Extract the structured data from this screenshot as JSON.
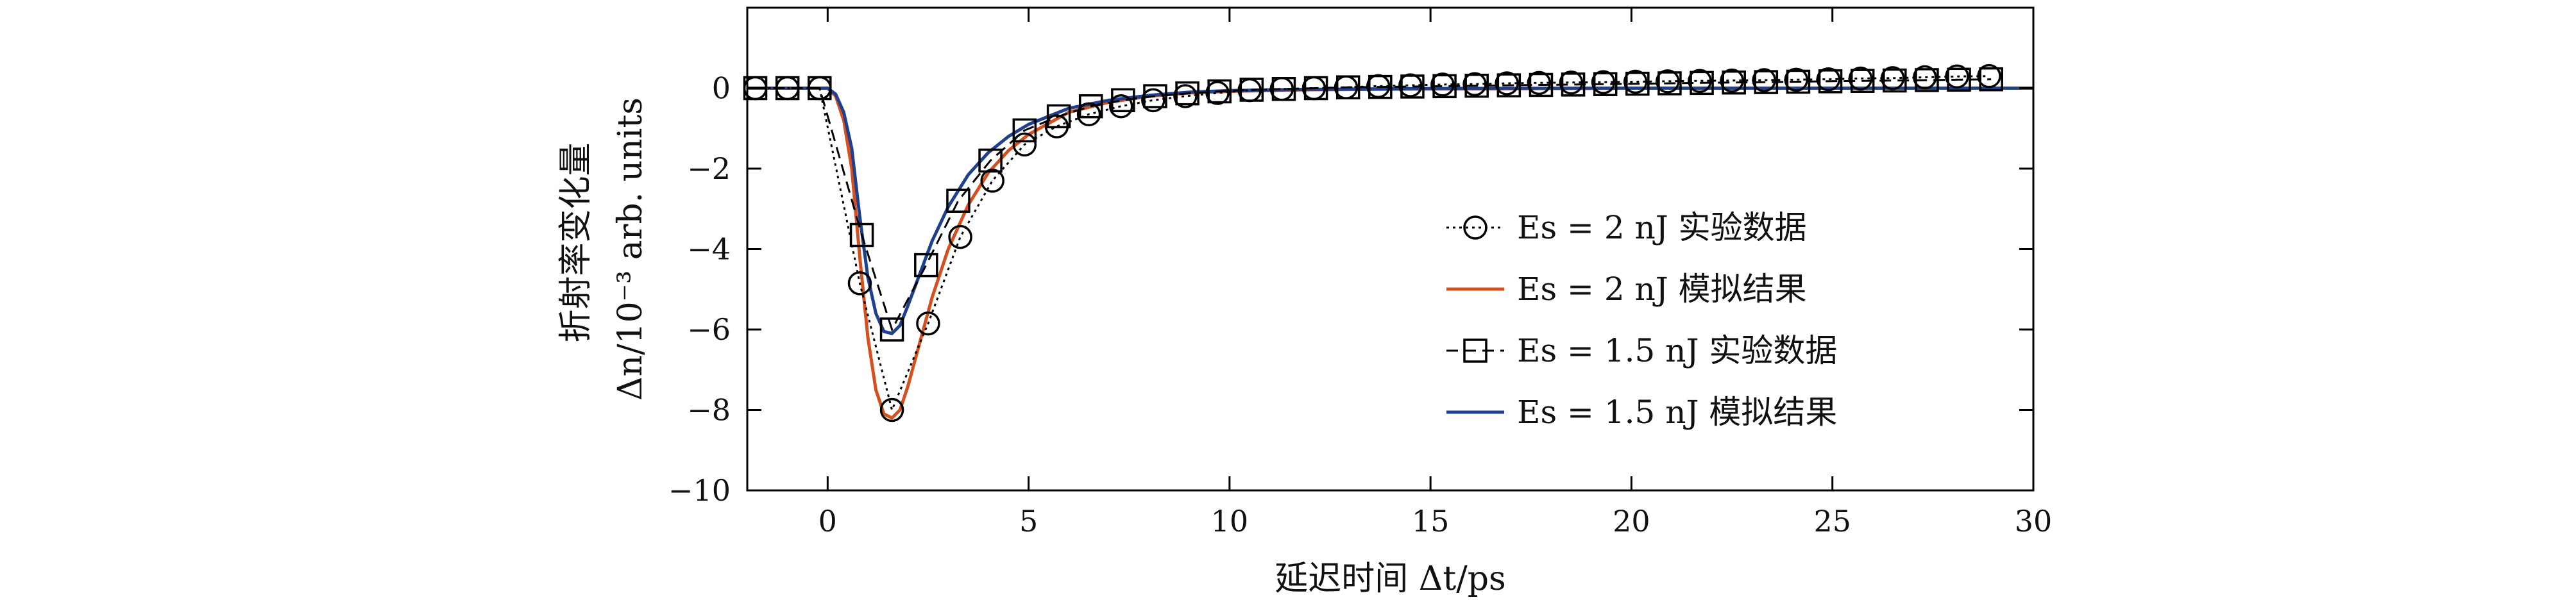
{
  "chart_data": {
    "type": "line",
    "title": "",
    "xlabel": "延迟时间 Δt/ps",
    "ylabel_line1": "折射率变化量",
    "ylabel_line2": "Δn/10⁻³ arb. units",
    "xlim": [
      -2,
      30
    ],
    "ylim": [
      -10,
      2
    ],
    "xticks": [
      0,
      5,
      10,
      15,
      20,
      25,
      30
    ],
    "yticks": [
      0,
      -2,
      -4,
      -6,
      -8,
      -10
    ],
    "xtick_labels": [
      "0",
      "5",
      "10",
      "15",
      "20",
      "25",
      "30"
    ],
    "ytick_labels": [
      "0",
      "−2",
      "−4",
      "−6",
      "−8",
      "−10"
    ],
    "grid": false,
    "legend_position": "right",
    "series": [
      {
        "name": "Es = 2 nJ 实验数据",
        "kind": "markers-dotted",
        "marker": "circle",
        "color": "#000000",
        "x": [
          -1.8,
          -1,
          -0.2,
          0.8,
          1.6,
          2.5,
          3.3,
          4.1,
          4.9,
          5.7,
          6.5,
          7.3,
          8.1,
          8.9,
          9.7,
          10.5,
          11.3,
          12.1,
          12.9,
          13.7,
          14.5,
          15.3,
          16.1,
          16.9,
          17.7,
          18.5,
          19.3,
          20.1,
          20.9,
          21.7,
          22.5,
          23.3,
          24.1,
          24.9,
          25.7,
          26.5,
          27.3,
          28.1,
          28.9
        ],
        "y": [
          0,
          0,
          0,
          -4.85,
          -8.0,
          -5.85,
          -3.7,
          -2.3,
          -1.4,
          -0.95,
          -0.65,
          -0.45,
          -0.3,
          -0.2,
          -0.12,
          -0.05,
          -0.02,
          0.0,
          0.02,
          0.05,
          0.07,
          0.09,
          0.1,
          0.12,
          0.13,
          0.14,
          0.15,
          0.16,
          0.17,
          0.18,
          0.19,
          0.2,
          0.21,
          0.22,
          0.24,
          0.25,
          0.27,
          0.29,
          0.3
        ]
      },
      {
        "name": "Es = 2 nJ 模拟结果",
        "kind": "line",
        "color": "#d4501f",
        "x": [
          -2,
          0,
          0.2,
          0.4,
          0.6,
          0.8,
          1.0,
          1.2,
          1.4,
          1.6,
          1.8,
          2.0,
          2.3,
          2.6,
          3.0,
          3.5,
          4.0,
          4.5,
          5.0,
          6.0,
          7.0,
          8.0,
          9.0,
          10.0,
          12.0,
          15.0,
          20.0,
          25.0,
          30.0
        ],
        "y": [
          0,
          0,
          -0.2,
          -0.8,
          -2.0,
          -4.2,
          -6.2,
          -7.5,
          -8.1,
          -8.2,
          -8.0,
          -7.4,
          -6.3,
          -5.2,
          -4.0,
          -2.9,
          -2.1,
          -1.55,
          -1.15,
          -0.6,
          -0.35,
          -0.2,
          -0.12,
          -0.08,
          -0.04,
          -0.02,
          0,
          0,
          0
        ]
      },
      {
        "name": "Es = 1.5 nJ 实验数据",
        "kind": "markers-dashed",
        "marker": "square",
        "color": "#000000",
        "x": [
          -1.8,
          -1,
          -0.2,
          0.85,
          1.6,
          2.45,
          3.25,
          4.05,
          4.9,
          5.75,
          6.55,
          7.35,
          8.15,
          8.95,
          9.75,
          10.55,
          11.35,
          12.15,
          12.95,
          13.75,
          14.55,
          15.35,
          16.15,
          16.95,
          17.75,
          18.55,
          19.35,
          20.15,
          20.95,
          21.75,
          22.55,
          23.35,
          24.15,
          24.95,
          25.75,
          26.55,
          27.35,
          28.15,
          28.95
        ],
        "y": [
          0,
          0,
          0,
          -3.65,
          -6.0,
          -4.4,
          -2.8,
          -1.8,
          -1.05,
          -0.7,
          -0.45,
          -0.3,
          -0.2,
          -0.13,
          -0.08,
          -0.04,
          -0.02,
          0.0,
          0.02,
          0.03,
          0.04,
          0.05,
          0.06,
          0.07,
          0.08,
          0.09,
          0.1,
          0.11,
          0.12,
          0.13,
          0.14,
          0.15,
          0.16,
          0.17,
          0.18,
          0.19,
          0.2,
          0.21,
          0.22
        ]
      },
      {
        "name": "Es = 1.5 nJ 模拟结果",
        "kind": "line",
        "color": "#1f3f8f",
        "x": [
          -2,
          0,
          0.2,
          0.4,
          0.6,
          0.8,
          1.0,
          1.2,
          1.4,
          1.6,
          1.8,
          2.0,
          2.3,
          2.6,
          3.0,
          3.5,
          4.0,
          4.5,
          5.0,
          6.0,
          7.0,
          8.0,
          9.0,
          10.0,
          12.0,
          15.0,
          20.0,
          25.0,
          30.0
        ],
        "y": [
          0,
          0,
          -0.15,
          -0.6,
          -1.5,
          -3.2,
          -4.7,
          -5.6,
          -6.05,
          -6.1,
          -5.9,
          -5.4,
          -4.6,
          -3.8,
          -2.95,
          -2.15,
          -1.6,
          -1.2,
          -0.9,
          -0.5,
          -0.3,
          -0.18,
          -0.1,
          -0.06,
          -0.03,
          -0.01,
          0,
          0,
          0
        ]
      }
    ]
  }
}
